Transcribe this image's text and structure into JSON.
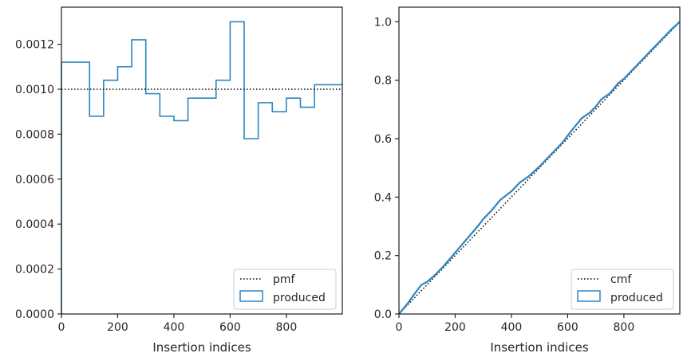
{
  "colors": {
    "series": "#2e86c1",
    "reference": "#000000",
    "axes": "#262626"
  },
  "chart_data": [
    {
      "type": "line",
      "subtype": "step-histogram",
      "xlabel": "Insertion indices",
      "ylabel": "",
      "xlim": [
        0,
        999
      ],
      "ylim": [
        0,
        0.001365
      ],
      "xticks": [
        0,
        200,
        400,
        600,
        800
      ],
      "yticks": [
        0,
        0.0002,
        0.0004,
        0.0006,
        0.0008,
        0.001,
        0.0012
      ],
      "ytick_labels": [
        "0.0000",
        "0.0002",
        "0.0004",
        "0.0006",
        "0.0008",
        "0.0010",
        "0.0012"
      ],
      "legend_position": "lower right",
      "grid": false,
      "series": [
        {
          "name": "pmf",
          "style": "dotted",
          "x": [
            0,
            999
          ],
          "y": [
            0.001,
            0.001
          ]
        },
        {
          "name": "produced",
          "style": "step",
          "bin_edges": [
            0,
            50,
            100,
            150,
            200,
            250,
            300,
            350,
            400,
            450,
            500,
            550,
            600,
            650,
            700,
            750,
            800,
            850,
            900,
            950,
            1000
          ],
          "values": [
            0.00112,
            0.00112,
            0.00088,
            0.00104,
            0.0011,
            0.00122,
            0.00098,
            0.00088,
            0.00086,
            0.00096,
            0.00096,
            0.00104,
            0.0013,
            0.00078,
            0.00094,
            0.0009,
            0.00096,
            0.00092,
            0.00102,
            0.00102
          ]
        }
      ]
    },
    {
      "type": "line",
      "xlabel": "Insertion indices",
      "ylabel": "",
      "xlim": [
        0,
        999
      ],
      "ylim": [
        0,
        1.05
      ],
      "xticks": [
        0,
        200,
        400,
        600,
        800
      ],
      "yticks": [
        0,
        0.2,
        0.4,
        0.6,
        0.8,
        1.0
      ],
      "ytick_labels": [
        "0.0",
        "0.2",
        "0.4",
        "0.6",
        "0.8",
        "1.0"
      ],
      "legend_position": "lower right",
      "grid": false,
      "series": [
        {
          "name": "cmf",
          "style": "dotted",
          "x": [
            0,
            999
          ],
          "y": [
            0,
            1
          ]
        },
        {
          "name": "produced",
          "style": "solid",
          "x": [
            0,
            30,
            60,
            80,
            100,
            130,
            160,
            200,
            240,
            280,
            300,
            330,
            360,
            400,
            430,
            460,
            500,
            540,
            580,
            620,
            650,
            680,
            700,
            720,
            750,
            780,
            800,
            830,
            860,
            900,
            940,
            970,
            999
          ],
          "y": [
            0,
            0.035,
            0.075,
            0.1,
            0.11,
            0.135,
            0.165,
            0.21,
            0.255,
            0.3,
            0.325,
            0.355,
            0.39,
            0.42,
            0.45,
            0.47,
            0.505,
            0.545,
            0.585,
            0.635,
            0.67,
            0.69,
            0.71,
            0.735,
            0.755,
            0.79,
            0.805,
            0.835,
            0.865,
            0.905,
            0.945,
            0.975,
            1.0
          ]
        }
      ]
    }
  ]
}
